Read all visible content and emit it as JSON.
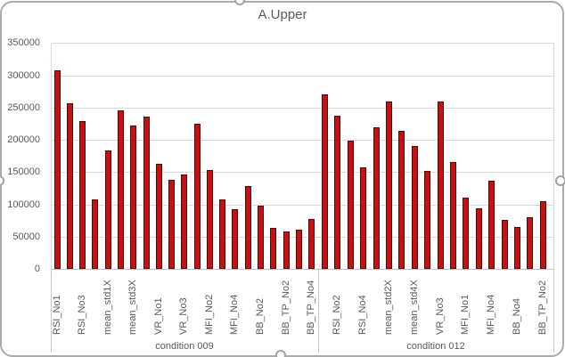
{
  "window": {
    "background": "#FFFFFF"
  },
  "colors": {
    "bar_fill": "#C61112",
    "bar_border": "#4E0808",
    "gridline": "#D9D9D9",
    "axis_line": "#BFBFBF",
    "divider": "#C9C9C9",
    "text": "#595959",
    "frame_border": "#ABABAB"
  },
  "chart_data": {
    "type": "bar",
    "title": "A.Upper",
    "xlabel": "",
    "ylabel": "",
    "ylim": [
      0,
      350000
    ],
    "ytick_step": 50000,
    "ytick_labels": [
      "0",
      "50000",
      "100000",
      "150000",
      "200000",
      "250000",
      "300000",
      "350000"
    ],
    "grid": true,
    "legend": false,
    "series_name": "A.Upper",
    "groups": [
      {
        "label": "condition 009",
        "bars": [
          {
            "label": "RSI_No1",
            "value": 307000
          },
          {
            "label": "",
            "value": 257000
          },
          {
            "label": "RSI_No3",
            "value": 229000
          },
          {
            "label": "",
            "value": 107000
          },
          {
            "label": "mean_std1X",
            "value": 183000
          },
          {
            "label": "",
            "value": 245000
          },
          {
            "label": "mean_std3X",
            "value": 222000
          },
          {
            "label": "",
            "value": 236000
          },
          {
            "label": "VR_No1",
            "value": 163000
          },
          {
            "label": "",
            "value": 138000
          },
          {
            "label": "VR_No3",
            "value": 146000
          },
          {
            "label": "",
            "value": 225000
          },
          {
            "label": "MFI_No2",
            "value": 153000
          },
          {
            "label": "",
            "value": 108000
          },
          {
            "label": "MFI_No4",
            "value": 92000
          },
          {
            "label": "",
            "value": 128000
          },
          {
            "label": "BB_No2",
            "value": 98000
          },
          {
            "label": "",
            "value": 63000
          },
          {
            "label": "BB_TP_No2",
            "value": 58000
          },
          {
            "label": "",
            "value": 61000
          },
          {
            "label": "BB_TP_No4",
            "value": 77000
          }
        ]
      },
      {
        "label": "condition 012",
        "bars": [
          {
            "label": "",
            "value": 271000
          },
          {
            "label": "RSI_No2",
            "value": 237000
          },
          {
            "label": "",
            "value": 198000
          },
          {
            "label": "RSI_No4",
            "value": 157000
          },
          {
            "label": "",
            "value": 219000
          },
          {
            "label": "mean_std2X",
            "value": 259000
          },
          {
            "label": "",
            "value": 214000
          },
          {
            "label": "mean_std4X",
            "value": 190000
          },
          {
            "label": "",
            "value": 152000
          },
          {
            "label": "VR_No3",
            "value": 259000
          },
          {
            "label": "",
            "value": 165000
          },
          {
            "label": "MFI_No1",
            "value": 111000
          },
          {
            "label": "",
            "value": 94000
          },
          {
            "label": "MFI_No4",
            "value": 137000
          },
          {
            "label": "",
            "value": 76000
          },
          {
            "label": "BB_No4",
            "value": 65000
          },
          {
            "label": "",
            "value": 80000
          },
          {
            "label": "BB_TP_No2",
            "value": 105000
          }
        ]
      }
    ]
  }
}
